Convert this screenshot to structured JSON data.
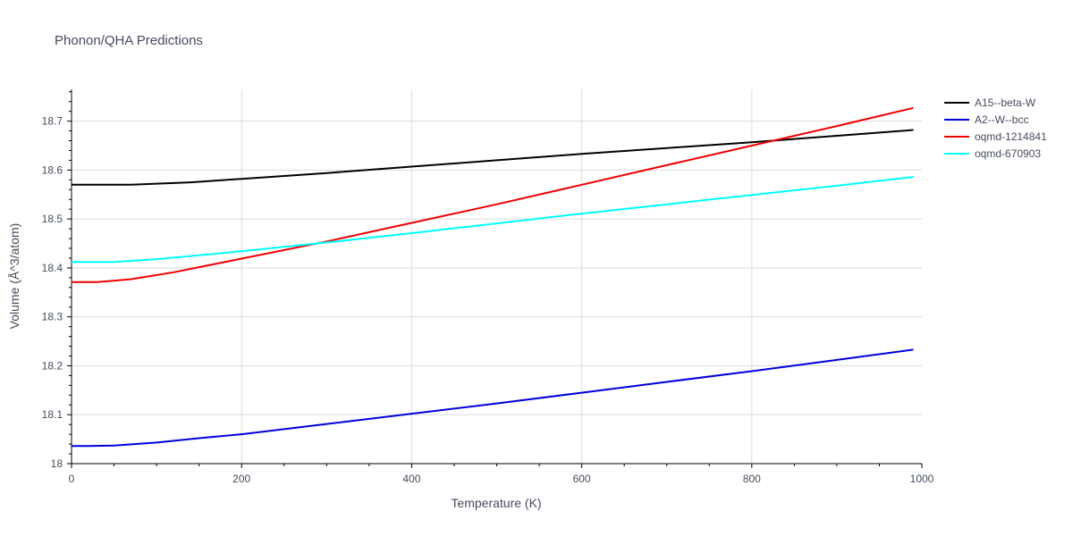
{
  "chart_data": {
    "type": "line",
    "title": "Phonon/QHA Predictions",
    "xlabel": "Temperature (K)",
    "ylabel": "Volume (Å^3/atom)",
    "xlim": [
      0,
      1000
    ],
    "ylim": [
      18.0,
      18.765
    ],
    "x_ticks": [
      0,
      200,
      400,
      600,
      800,
      1000
    ],
    "x_tick_labels": [
      "0",
      "200",
      "400",
      "600",
      "800",
      "1000"
    ],
    "y_ticks": [
      18.0,
      18.1,
      18.2,
      18.3,
      18.4,
      18.5,
      18.6,
      18.7
    ],
    "y_tick_labels": [
      "18",
      "18.1",
      "18.2",
      "18.3",
      "18.4",
      "18.5",
      "18.6",
      "18.7"
    ],
    "grid": true,
    "legend_position": "top-right",
    "series": [
      {
        "name": "A15--beta-W",
        "color": "#000000",
        "x": [
          0,
          30,
          70,
          140,
          200,
          300,
          400,
          500,
          600,
          700,
          800,
          900,
          990
        ],
        "y": [
          18.57,
          18.57,
          18.57,
          18.575,
          18.582,
          18.594,
          18.607,
          18.62,
          18.633,
          18.645,
          18.657,
          18.67,
          18.682
        ]
      },
      {
        "name": "A2--W--bcc",
        "color": "#0000dd",
        "x": [
          0,
          20,
          50,
          100,
          150,
          200,
          300,
          400,
          500,
          600,
          700,
          800,
          900,
          990
        ],
        "y": [
          18.036,
          18.036,
          18.037,
          18.043,
          18.052,
          18.06,
          18.081,
          18.102,
          18.123,
          18.145,
          18.167,
          18.189,
          18.212,
          18.233
        ]
      },
      {
        "name": "oqmd-1214841",
        "color": "#ee0000",
        "x": [
          0,
          30,
          70,
          120,
          200,
          300,
          400,
          500,
          600,
          700,
          800,
          900,
          990
        ],
        "y": [
          18.371,
          18.371,
          18.377,
          18.391,
          18.419,
          18.454,
          18.492,
          18.53,
          18.57,
          18.61,
          18.65,
          18.69,
          18.727
        ]
      },
      {
        "name": "oqmd-670903",
        "color": "#00ffff",
        "x": [
          0,
          20,
          50,
          100,
          150,
          200,
          300,
          400,
          500,
          600,
          700,
          800,
          900,
          990
        ],
        "y": [
          18.412,
          18.412,
          18.412,
          18.418,
          18.426,
          18.434,
          18.452,
          18.471,
          18.491,
          18.511,
          18.53,
          18.549,
          18.568,
          18.586
        ]
      }
    ]
  }
}
